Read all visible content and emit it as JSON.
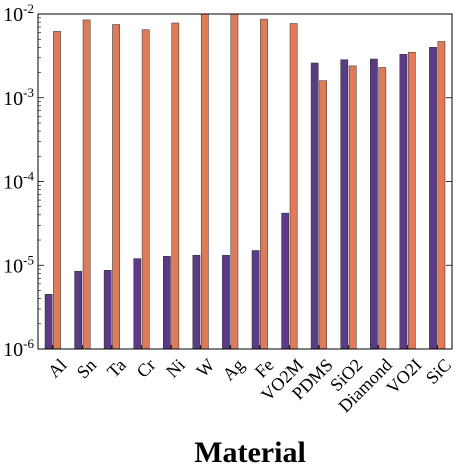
{
  "chart_data": {
    "type": "bar",
    "xlabel": "Material",
    "ylabel": "",
    "yscale": "log",
    "ylim": [
      1e-06,
      0.01
    ],
    "y_tick_labels": [
      "10-2",
      "10-3",
      "10-4",
      "10-5",
      "10-6"
    ],
    "categories": [
      "Al",
      "Sn",
      "Ta",
      "Cr",
      "Ni",
      "W",
      "Ag",
      "Fe",
      "VO2M",
      "PDMS",
      "SiO2",
      "Diamond",
      "VO2I",
      "SiC"
    ],
    "series": [
      {
        "color": "#5b3a86",
        "values": [
          4.5e-06,
          8.5e-06,
          8.7e-06,
          1.2e-05,
          1.28e-05,
          1.32e-05,
          1.32e-05,
          1.5e-05,
          4.2e-05,
          0.0026,
          0.00285,
          0.0029,
          0.0033,
          0.004
        ]
      },
      {
        "color": "#e07b5a",
        "values": [
          0.0062,
          0.0085,
          0.0075,
          0.0065,
          0.0078,
          0.011,
          0.013,
          0.0087,
          0.0077,
          0.0016,
          0.0024,
          0.0023,
          0.0035,
          0.0047
        ]
      }
    ],
    "grid": false,
    "legend": "none"
  }
}
